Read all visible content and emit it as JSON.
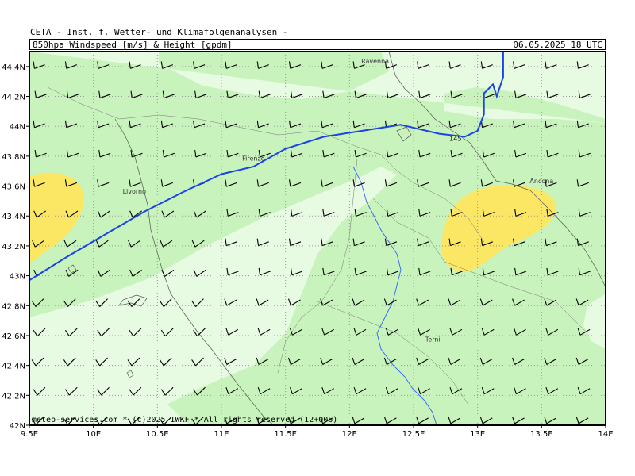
{
  "header": {
    "line1": "CETA - Inst. f. Wetter- und Klimafolgenanalysen -",
    "title": "850hpa_Windspeed_[m/s]_&_Height_[gpdm]",
    "date": "06.05.2025 18 UTC"
  },
  "footer": "meteo-services.com * (c)2025 IWKF * All rights reserved (12+006)",
  "map": {
    "lon_range": [
      9.5,
      14.0
    ],
    "lat_range": [
      42.0,
      44.5
    ],
    "lon_ticks": [
      {
        "value": 9.5,
        "label": "9.5E"
      },
      {
        "value": 10.0,
        "label": "10E"
      },
      {
        "value": 10.5,
        "label": "10.5E"
      },
      {
        "value": 11.0,
        "label": "11E"
      },
      {
        "value": 11.5,
        "label": "11.5E"
      },
      {
        "value": 12.0,
        "label": "12E"
      },
      {
        "value": 12.5,
        "label": "12.5E"
      },
      {
        "value": 13.0,
        "label": "13E"
      },
      {
        "value": 13.5,
        "label": "13.5E"
      },
      {
        "value": 14.0,
        "label": "14E"
      }
    ],
    "lat_ticks": [
      {
        "value": 44.4,
        "label": "44.4N"
      },
      {
        "value": 44.2,
        "label": "44.2N"
      },
      {
        "value": 44.0,
        "label": "44N"
      },
      {
        "value": 43.8,
        "label": "43.8N"
      },
      {
        "value": 43.6,
        "label": "43.6N"
      },
      {
        "value": 43.4,
        "label": "43.4N"
      },
      {
        "value": 43.2,
        "label": "43.2N"
      },
      {
        "value": 43.0,
        "label": "43N"
      },
      {
        "value": 42.8,
        "label": "42.8N"
      },
      {
        "value": 42.6,
        "label": "42.6N"
      },
      {
        "value": 42.4,
        "label": "42.4N"
      },
      {
        "value": 42.2,
        "label": "42.2N"
      },
      {
        "value": 42.0,
        "label": "42N"
      }
    ],
    "cities": [
      {
        "name": "Ravenna",
        "lon": 12.2,
        "lat": 44.42
      },
      {
        "name": "Firenze",
        "lon": 11.25,
        "lat": 43.77
      },
      {
        "name": "Livorno",
        "lon": 10.32,
        "lat": 43.55
      },
      {
        "name": "Ancona",
        "lon": 13.5,
        "lat": 43.62
      },
      {
        "name": "Terni",
        "lon": 12.65,
        "lat": 42.56
      }
    ],
    "height_contour": {
      "label": "145",
      "color": "#1a44e8",
      "points": [
        [
          9.5,
          42.97
        ],
        [
          9.8,
          43.13
        ],
        [
          10.1,
          43.28
        ],
        [
          10.4,
          43.43
        ],
        [
          10.7,
          43.56
        ],
        [
          11.0,
          43.68
        ],
        [
          11.25,
          43.73
        ],
        [
          11.5,
          43.85
        ],
        [
          11.8,
          43.93
        ],
        [
          12.1,
          43.97
        ],
        [
          12.4,
          44.01
        ],
        [
          12.7,
          43.95
        ],
        [
          12.9,
          43.93
        ],
        [
          13.0,
          43.97
        ],
        [
          13.05,
          44.08
        ],
        [
          13.05,
          44.22
        ],
        [
          13.12,
          44.28
        ],
        [
          13.15,
          44.2
        ],
        [
          13.2,
          44.33
        ],
        [
          13.2,
          44.5
        ]
      ]
    },
    "colors": {
      "light_green": "#e7fae2",
      "mid_green": "#c9f3bc",
      "yellow": "#fbe763",
      "grid": "#999999",
      "river": "#2f62ff"
    }
  }
}
